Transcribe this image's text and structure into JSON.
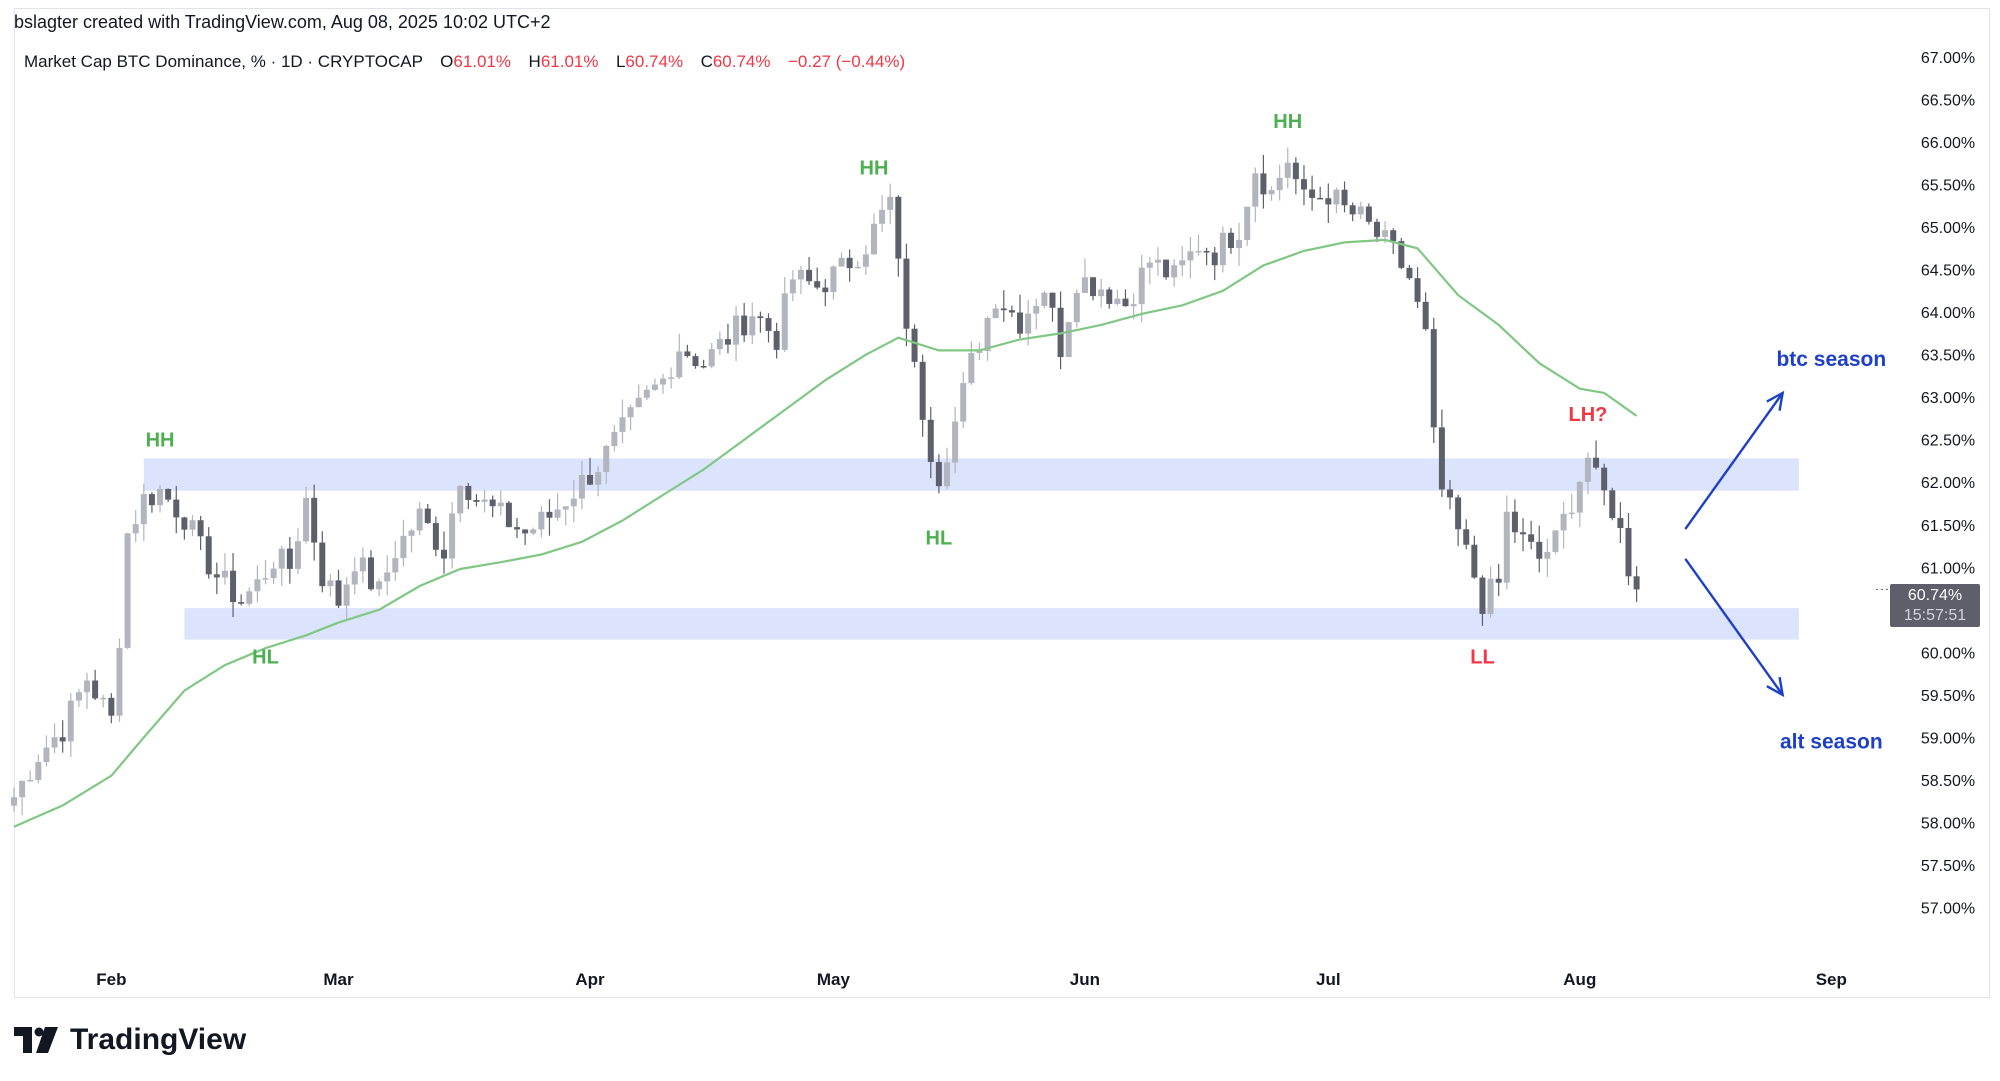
{
  "header": {
    "attribution": "bslagter created with TradingView.com, Aug 08, 2025 10:02 UTC+2"
  },
  "legend": {
    "symbol": "Market Cap BTC Dominance, % · 1D · CRYPTOCAP",
    "open_label": "O",
    "open_value": "61.01%",
    "high_label": "H",
    "high_value": "61.01%",
    "low_label": "L",
    "low_value": "60.74%",
    "close_label": "C",
    "close_value": "60.74%",
    "change": "−0.27 (−0.44%)"
  },
  "price_tag": {
    "price": "60.74%",
    "countdown": "15:57:51"
  },
  "footer": {
    "brand": "TradingView",
    "logo_icon": "tradingview-logo-icon"
  },
  "colors": {
    "bullish_candle": "#b2b5be",
    "bearish_candle": "#5d606b",
    "ma_line": "#81c784",
    "zone_fill": "#dbe3fd",
    "green_label": "#4caf50",
    "red_label": "#f23645",
    "blue_label": "#1e3fc8"
  },
  "chart_data": {
    "type": "candlestick",
    "title": "Market Cap BTC Dominance, % · 1D · CRYPTOCAP",
    "xlabel": "",
    "ylabel": "",
    "ylim": [
      56.5,
      67.2
    ],
    "x_range": [
      "2025-01-20",
      "2025-09-07"
    ],
    "y_ticks": [
      "67.00%",
      "66.50%",
      "66.00%",
      "65.50%",
      "65.00%",
      "64.50%",
      "64.00%",
      "63.50%",
      "63.00%",
      "62.50%",
      "62.00%",
      "61.50%",
      "61.00%",
      "60.50%",
      "60.00%",
      "59.50%",
      "59.00%",
      "58.50%",
      "58.00%",
      "57.50%",
      "57.00%"
    ],
    "y_tick_values": [
      67.0,
      66.5,
      66.0,
      65.5,
      65.0,
      64.5,
      64.0,
      63.5,
      63.0,
      62.5,
      62.0,
      61.5,
      61.0,
      60.5,
      60.0,
      59.5,
      59.0,
      58.5,
      58.0,
      57.5,
      57.0
    ],
    "x_ticks": [
      {
        "label": "Feb",
        "date": "2025-02-01"
      },
      {
        "label": "Mar",
        "date": "2025-03-01"
      },
      {
        "label": "Apr",
        "date": "2025-04-01"
      },
      {
        "label": "May",
        "date": "2025-05-01"
      },
      {
        "label": "Jun",
        "date": "2025-06-01"
      },
      {
        "label": "Jul",
        "date": "2025-07-01"
      },
      {
        "label": "Aug",
        "date": "2025-08-01"
      },
      {
        "label": "Sep",
        "date": "2025-09-01"
      }
    ],
    "grid": false,
    "candles_series_name": "",
    "candles_dates": [
      [
        "2025-01-20",
        201
      ]
    ],
    "close_path": [
      [
        "2025-01-20",
        58.3
      ],
      [
        "2025-01-23",
        58.8
      ],
      [
        "2025-01-26",
        59.1
      ],
      [
        "2025-01-29",
        59.7
      ],
      [
        "2025-02-01",
        59.2
      ],
      [
        "2025-02-02",
        60.2
      ],
      [
        "2025-02-03",
        61.4
      ],
      [
        "2025-02-05",
        61.8
      ],
      [
        "2025-02-07",
        61.9
      ],
      [
        "2025-02-10",
        61.6
      ],
      [
        "2025-02-12",
        61.2
      ],
      [
        "2025-02-14",
        60.9
      ],
      [
        "2025-02-17",
        60.6
      ],
      [
        "2025-02-19",
        60.8
      ],
      [
        "2025-02-21",
        61.1
      ],
      [
        "2025-02-23",
        61.0
      ],
      [
        "2025-02-25",
        61.8
      ],
      [
        "2025-02-27",
        60.9
      ],
      [
        "2025-03-01",
        60.6
      ],
      [
        "2025-03-03",
        61.1
      ],
      [
        "2025-03-06",
        60.7
      ],
      [
        "2025-03-08",
        61.2
      ],
      [
        "2025-03-11",
        61.6
      ],
      [
        "2025-03-14",
        61.2
      ],
      [
        "2025-03-16",
        62.1
      ],
      [
        "2025-03-18",
        61.8
      ],
      [
        "2025-03-21",
        61.6
      ],
      [
        "2025-03-24",
        61.4
      ],
      [
        "2025-03-27",
        61.6
      ],
      [
        "2025-03-30",
        61.9
      ],
      [
        "2025-04-02",
        62.2
      ],
      [
        "2025-04-05",
        62.6
      ],
      [
        "2025-04-08",
        63.0
      ],
      [
        "2025-04-10",
        63.2
      ],
      [
        "2025-04-12",
        63.6
      ],
      [
        "2025-04-15",
        63.4
      ],
      [
        "2025-04-18",
        63.7
      ],
      [
        "2025-04-21",
        64.0
      ],
      [
        "2025-04-24",
        63.7
      ],
      [
        "2025-04-26",
        64.4
      ],
      [
        "2025-04-29",
        64.3
      ],
      [
        "2025-05-02",
        64.5
      ],
      [
        "2025-05-05",
        64.8
      ],
      [
        "2025-05-08",
        65.3
      ],
      [
        "2025-05-09",
        64.5
      ],
      [
        "2025-05-11",
        63.3
      ],
      [
        "2025-05-13",
        62.4
      ],
      [
        "2025-05-14",
        62.1
      ],
      [
        "2025-05-16",
        62.7
      ],
      [
        "2025-05-18",
        63.4
      ],
      [
        "2025-05-21",
        64.2
      ],
      [
        "2025-05-24",
        63.9
      ],
      [
        "2025-05-27",
        64.3
      ],
      [
        "2025-05-29",
        63.6
      ],
      [
        "2025-05-31",
        64.4
      ],
      [
        "2025-06-03",
        64.3
      ],
      [
        "2025-06-06",
        64.1
      ],
      [
        "2025-06-09",
        64.6
      ],
      [
        "2025-06-12",
        64.4
      ],
      [
        "2025-06-15",
        64.8
      ],
      [
        "2025-06-17",
        64.7
      ],
      [
        "2025-06-20",
        65.0
      ],
      [
        "2025-06-22",
        65.7
      ],
      [
        "2025-06-24",
        65.4
      ],
      [
        "2025-06-26",
        65.8
      ],
      [
        "2025-06-28",
        65.3
      ],
      [
        "2025-07-01",
        65.4
      ],
      [
        "2025-07-03",
        65.2
      ],
      [
        "2025-07-05",
        65.1
      ],
      [
        "2025-07-07",
        64.9
      ],
      [
        "2025-07-09",
        64.7
      ],
      [
        "2025-07-11",
        64.4
      ],
      [
        "2025-07-13",
        63.7
      ],
      [
        "2025-07-14",
        62.5
      ],
      [
        "2025-07-15",
        61.9
      ],
      [
        "2025-07-17",
        61.4
      ],
      [
        "2025-07-19",
        60.9
      ],
      [
        "2025-07-20",
        60.6
      ],
      [
        "2025-07-22",
        60.8
      ],
      [
        "2025-07-23",
        61.6
      ],
      [
        "2025-07-25",
        61.3
      ],
      [
        "2025-07-27",
        61.1
      ],
      [
        "2025-07-29",
        61.3
      ],
      [
        "2025-07-31",
        61.8
      ],
      [
        "2025-08-02",
        62.3
      ],
      [
        "2025-08-03",
        62.0
      ],
      [
        "2025-08-05",
        61.7
      ],
      [
        "2025-08-06",
        61.4
      ],
      [
        "2025-08-07",
        61.01
      ],
      [
        "2025-08-08",
        60.74
      ]
    ],
    "moving_average": {
      "name": "",
      "points": [
        [
          "2025-01-20",
          57.95
        ],
        [
          "2025-01-26",
          58.2
        ],
        [
          "2025-02-01",
          58.55
        ],
        [
          "2025-02-05",
          59.0
        ],
        [
          "2025-02-10",
          59.55
        ],
        [
          "2025-02-15",
          59.85
        ],
        [
          "2025-02-20",
          60.05
        ],
        [
          "2025-02-25",
          60.2
        ],
        [
          "2025-03-01",
          60.35
        ],
        [
          "2025-03-06",
          60.5
        ],
        [
          "2025-03-11",
          60.78
        ],
        [
          "2025-03-16",
          60.98
        ],
        [
          "2025-03-21",
          61.06
        ],
        [
          "2025-03-26",
          61.15
        ],
        [
          "2025-03-31",
          61.3
        ],
        [
          "2025-04-05",
          61.55
        ],
        [
          "2025-04-10",
          61.85
        ],
        [
          "2025-04-15",
          62.15
        ],
        [
          "2025-04-20",
          62.5
        ],
        [
          "2025-04-25",
          62.85
        ],
        [
          "2025-04-30",
          63.2
        ],
        [
          "2025-05-05",
          63.5
        ],
        [
          "2025-05-09",
          63.7
        ],
        [
          "2025-05-14",
          63.55
        ],
        [
          "2025-05-19",
          63.55
        ],
        [
          "2025-05-24",
          63.68
        ],
        [
          "2025-05-29",
          63.75
        ],
        [
          "2025-06-03",
          63.85
        ],
        [
          "2025-06-08",
          63.98
        ],
        [
          "2025-06-13",
          64.08
        ],
        [
          "2025-06-18",
          64.25
        ],
        [
          "2025-06-23",
          64.55
        ],
        [
          "2025-06-28",
          64.72
        ],
        [
          "2025-07-03",
          64.82
        ],
        [
          "2025-07-08",
          64.85
        ],
        [
          "2025-07-12",
          64.75
        ],
        [
          "2025-07-17",
          64.2
        ],
        [
          "2025-07-22",
          63.85
        ],
        [
          "2025-07-27",
          63.4
        ],
        [
          "2025-08-01",
          63.1
        ],
        [
          "2025-08-04",
          63.05
        ]
      ],
      "projection": [
        [
          "2025-08-04",
          63.05
        ],
        [
          "2025-08-08",
          62.78
        ]
      ]
    },
    "zones": [
      {
        "from": 61.9,
        "to": 62.28,
        "x_from": "2025-02-05",
        "x_to": "2025-08-28"
      },
      {
        "from": 60.15,
        "to": 60.52,
        "x_from": "2025-02-10",
        "x_to": "2025-08-28"
      }
    ],
    "annotations": [
      {
        "text": "HH",
        "date": "2025-02-07",
        "value": 62.5,
        "color": "green"
      },
      {
        "text": "HL",
        "date": "2025-02-20",
        "value": 59.95,
        "color": "green"
      },
      {
        "text": "HH",
        "date": "2025-05-06",
        "value": 65.7,
        "color": "green"
      },
      {
        "text": "HL",
        "date": "2025-05-14",
        "value": 61.35,
        "color": "green"
      },
      {
        "text": "HH",
        "date": "2025-06-26",
        "value": 66.25,
        "color": "green"
      },
      {
        "text": "LL",
        "date": "2025-07-20",
        "value": 59.95,
        "color": "red"
      },
      {
        "text": "LH?",
        "date": "2025-08-02",
        "value": 62.8,
        "color": "red"
      },
      {
        "text": "btc season",
        "date": "2025-09-01",
        "value": 63.45,
        "color": "blue"
      },
      {
        "text": "alt season",
        "date": "2025-09-01",
        "value": 58.95,
        "color": "blue"
      }
    ],
    "arrows": [
      {
        "from": [
          "2025-08-14",
          61.45
        ],
        "to": [
          "2025-08-26",
          63.05
        ],
        "name": "up-arrow"
      },
      {
        "from": [
          "2025-08-14",
          61.1
        ],
        "to": [
          "2025-08-26",
          59.5
        ],
        "name": "down-arrow"
      }
    ],
    "last_price": 60.74
  }
}
